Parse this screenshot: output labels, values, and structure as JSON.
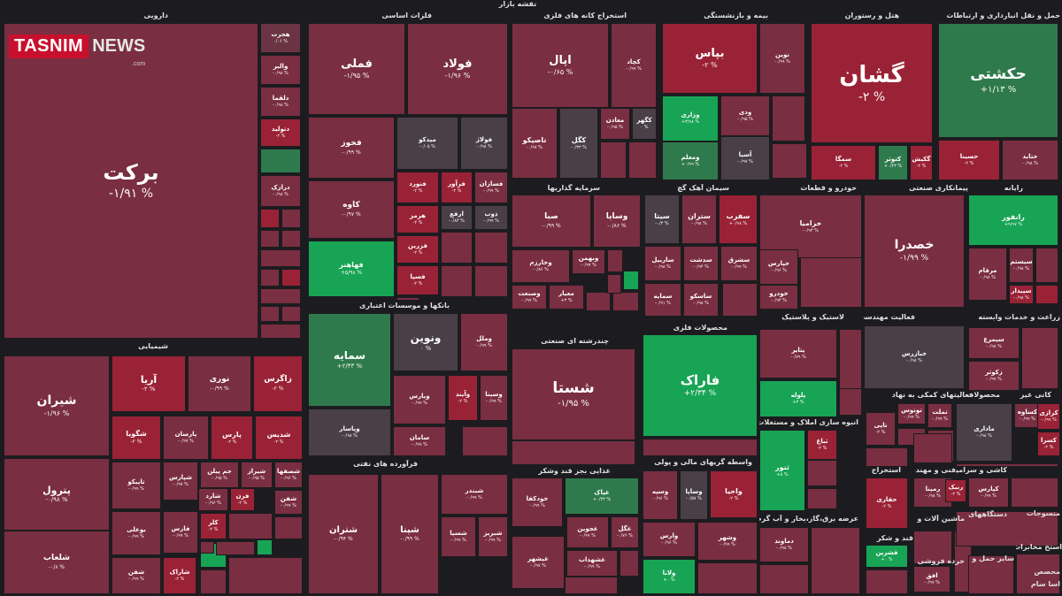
{
  "title": "نقشه بازار",
  "logo": {
    "main": "TASNIM",
    "sub": "NEWS",
    "url": ".com"
  },
  "colors": {
    "bg": "#1c1c20",
    "down": "#7a2e41",
    "down_strong": "#9a2236",
    "down_light": "#6b3444",
    "neutral": "#4a3f47",
    "up": "#18a455",
    "up_light": "#2f7a4c"
  },
  "sectors": [
    {
      "name": "دارویی"
    },
    {
      "name": "فلزات اساسی"
    },
    {
      "name": "استخراج کانه های فلزی"
    },
    {
      "name": "بیمه و بازنشستگی"
    },
    {
      "name": "هتل و رستوران"
    },
    {
      "name": "حمل و نقل انبارداری و ارتباطات"
    },
    {
      "name": "سرمایه گذاریها"
    },
    {
      "name": "سیمان آهک گچ"
    },
    {
      "name": "خودرو و قطعات"
    },
    {
      "name": "پیمانکاری صنعتی"
    },
    {
      "name": "رایانه"
    },
    {
      "name": "شیمیایی"
    },
    {
      "name": "بانکها و موسسات اعتباری"
    },
    {
      "name": "چندرشته ای صنعتی"
    },
    {
      "name": "محصولات فلزی"
    },
    {
      "name": "لاستیک و پلاستیک"
    },
    {
      "name": "فعالیت مهندسی، تجزیه"
    },
    {
      "name": "زراعت و خدمات وابسته"
    },
    {
      "name": "فرآورده های نفتی"
    },
    {
      "name": "غذایی بجز قند وشکر"
    },
    {
      "name": "واسطه گریهای مالی و پولی"
    },
    {
      "name": "انبوه سازی املاک و مستغلات"
    },
    {
      "name": "فعالیتهای کمکی به نهاد"
    },
    {
      "name": "محصولات"
    },
    {
      "name": "کانی غیر"
    },
    {
      "name": "عرضه برق،گاز،بخار و آب گرم"
    },
    {
      "name": "فنی و مهندسی"
    },
    {
      "name": "کاشی و سرامیک"
    },
    {
      "name": "استخراج"
    },
    {
      "name": "دستگاههای"
    },
    {
      "name": "ماشین آلات و"
    },
    {
      "name": "منسوجات"
    },
    {
      "name": "قند و شکر"
    },
    {
      "name": "خرده فروشی"
    },
    {
      "name": "سایر حمل و"
    },
    {
      "name": "استخ مخابرات"
    },
    {
      "name": "محصص"
    },
    {
      "name": "اسا سام"
    }
  ],
  "tiles": [
    {
      "name": "برکت",
      "pct": "-۱/۹۱ %"
    },
    {
      "name": "هجرت",
      "pct": "۰/۰۶ %"
    },
    {
      "name": "والبر",
      "pct": "-۰/۹۸ %"
    },
    {
      "name": "دلقما",
      "pct": "-۰/۹۸ %"
    },
    {
      "name": "دتولید",
      "pct": "-۲ %"
    },
    {
      "name": "",
      "pct": ""
    },
    {
      "name": "درازک",
      "pct": "-۰/۹۸ %"
    },
    {
      "name": "فملی",
      "pct": "-۱/۹۵ %"
    },
    {
      "name": "فولاد",
      "pct": "-۱/۹۶ %"
    },
    {
      "name": "فخوز",
      "pct": "-۰/۹۹ %"
    },
    {
      "name": "میدکو",
      "pct": "-۰/۰۵ %"
    },
    {
      "name": "فولاژ",
      "pct": "-۰/۹۸ %"
    },
    {
      "name": "کاوه",
      "pct": "-۰/۹۷ %"
    },
    {
      "name": "فنورد",
      "pct": "-۲ %"
    },
    {
      "name": "فرآور",
      "pct": "-۲ %"
    },
    {
      "name": "فسازان",
      "pct": "-۰/۹۹ %"
    },
    {
      "name": "هرمز",
      "pct": "-۲ %"
    },
    {
      "name": "ارفع",
      "pct": "-۰/۸۳ %"
    },
    {
      "name": "ذوب",
      "pct": "-۰/۹۹ %"
    },
    {
      "name": "فهاهنر",
      "pct": "+۵/۹۸ %"
    },
    {
      "name": "فزرین",
      "pct": "-۲ %"
    },
    {
      "name": "فسپا",
      "pct": "-۲ %"
    },
    {
      "name": "اپال",
      "pct": "-۰/۶۵ %"
    },
    {
      "name": "کچاد",
      "pct": "-۰/۹۹ %"
    },
    {
      "name": "تاصیکو",
      "pct": "-۰/۹۷ %"
    },
    {
      "name": "کگل",
      "pct": "-۰/۳۳ %"
    },
    {
      "name": "معادن",
      "pct": "-۰/۹۵ %"
    },
    {
      "name": "کگهر",
      "pct": "۰ %"
    },
    {
      "name": "بپاس",
      "pct": "-۲ %"
    },
    {
      "name": "نوین",
      "pct": "-۰/۹۹ %"
    },
    {
      "name": "وزاری",
      "pct": "+۳/۹۸ %"
    },
    {
      "name": "ودی",
      "pct": "-۰/۹۵ %"
    },
    {
      "name": "ومعلم",
      "pct": "+۰/۹۹ %"
    },
    {
      "name": "آسیا",
      "pct": "-۰/۹۷ %"
    },
    {
      "name": "گشان",
      "pct": "-۲ %"
    },
    {
      "name": "سمگا",
      "pct": "-۲ %"
    },
    {
      "name": "کتوثر",
      "pct": "+۰/۴۳ %"
    },
    {
      "name": "گکیش",
      "pct": "-۲ %"
    },
    {
      "name": "حکشتی",
      "pct": "+۱/۱۳ %"
    },
    {
      "name": "حسینا",
      "pct": "-۲ %"
    },
    {
      "name": "حتاید",
      "pct": "-۰/۹۸ %"
    },
    {
      "name": "صبا",
      "pct": "-۰/۹۹ %"
    },
    {
      "name": "وسایا",
      "pct": "-۰/۸۶ %"
    },
    {
      "name": "وبهمن",
      "pct": "-۰/۹۷ %"
    },
    {
      "name": "وخارزم",
      "pct": "-۰/۸۶ %"
    },
    {
      "name": "معیار",
      "pct": "+۳ %"
    },
    {
      "name": "وصنعت",
      "pct": "-۰/۹۷ %"
    },
    {
      "name": "سیتا",
      "pct": "-۰/۳ %"
    },
    {
      "name": "ستران",
      "pct": "-۰/۹۸ %"
    },
    {
      "name": "سفرب",
      "pct": "+۰/۹۸ %"
    },
    {
      "name": "ساربیل",
      "pct": "-۰/۹۸ %"
    },
    {
      "name": "سدشت",
      "pct": "-۰/۹۴ %"
    },
    {
      "name": "سشرق",
      "pct": "-۰/۹۹ %"
    },
    {
      "name": "سمایه",
      "pct": "-۰/۹۱ %"
    },
    {
      "name": "ساسکو",
      "pct": "-۰/۹۸ %"
    },
    {
      "name": "خزامیا",
      "pct": "-۰/۹۳ %"
    },
    {
      "name": "خپارس",
      "pct": "-۰/۹۶ %"
    },
    {
      "name": "خودرو",
      "pct": "-۰/۹۳ %"
    },
    {
      "name": "خصدرا",
      "pct": "-۱/۹۹ %"
    },
    {
      "name": "رانفور",
      "pct": "+۹/۹۷ %"
    },
    {
      "name": "سیستم",
      "pct": "-۰/۹۸ %"
    },
    {
      "name": "مرقام",
      "pct": "-۰/۹۸ %"
    },
    {
      "name": "سپیدار",
      "pct": "-۰/۹۸ %"
    },
    {
      "name": "شیران",
      "pct": "-۱/۹۶ %"
    },
    {
      "name": "آریا",
      "pct": "-۲ %"
    },
    {
      "name": "نوری",
      "pct": "-۰/۹۹ %"
    },
    {
      "name": "زاگرس",
      "pct": "-۲ %"
    },
    {
      "name": "شگویا",
      "pct": "-۲ %"
    },
    {
      "name": "پارسان",
      "pct": "-۰/۹۷ %"
    },
    {
      "name": "پارس",
      "pct": "-۲ %"
    },
    {
      "name": "شدیس",
      "pct": "-۲ %"
    },
    {
      "name": "پترول",
      "pct": "-۰/۹۸ %"
    },
    {
      "name": "تاپیکو",
      "pct": "-۰/۹۹ %"
    },
    {
      "name": "شپارس",
      "pct": "-۰/۹۷ %"
    },
    {
      "name": "جم پیلن",
      "pct": "-۰/۹۵ %"
    },
    {
      "name": "شیراز",
      "pct": "-۰/۹۵ %"
    },
    {
      "name": "شصفها",
      "pct": "-۰/۹۶ %"
    },
    {
      "name": "شفن",
      "pct": "-۰/۹۹ %"
    },
    {
      "name": "بوعلی",
      "pct": "-۰/۹۹ %"
    },
    {
      "name": "شارد",
      "pct": "-۰/۹۶ %"
    },
    {
      "name": "فرن",
      "pct": "-۲ %"
    },
    {
      "name": "فارس",
      "pct": "-۰/۹۹ %"
    },
    {
      "name": "کلر",
      "pct": "-۲ %"
    },
    {
      "name": "شلعاب",
      "pct": "-۰/۸ %"
    },
    {
      "name": "شفن",
      "pct": "-۰/۹۹ %"
    },
    {
      "name": "شاراک",
      "pct": "-۲ %"
    },
    {
      "name": "سمایه",
      "pct": "+۲/۴۳ %"
    },
    {
      "name": "ونوین",
      "pct": "۰ %"
    },
    {
      "name": "وملل",
      "pct": "-۰/۹۹ %"
    },
    {
      "name": "ویارس",
      "pct": "-۰/۹۹ %"
    },
    {
      "name": "وآیند",
      "pct": "-۲ %"
    },
    {
      "name": "وسینا",
      "pct": "-۰/۹۹ %"
    },
    {
      "name": "وپاسار",
      "pct": "-۰/۹۸ %"
    },
    {
      "name": "سامان",
      "pct": "-۰/۹۹ %"
    },
    {
      "name": "شستا",
      "pct": "-۱/۹۵ %"
    },
    {
      "name": "فاراک",
      "pct": "+۲/۳۴ %"
    },
    {
      "name": "پتایر",
      "pct": "-۰/۷۹ %"
    },
    {
      "name": "پلوله",
      "pct": "+۳ %"
    },
    {
      "name": "خبازرس",
      "pct": "-۰/۹۸ %"
    },
    {
      "name": "سیمرغ",
      "pct": "-۰/۹۸ %"
    },
    {
      "name": "زکوثر",
      "pct": "-۰/۹۹ %"
    },
    {
      "name": "شتران",
      "pct": "-۰/۹۴ %"
    },
    {
      "name": "شپنا",
      "pct": "-۰/۹۹ %"
    },
    {
      "name": "شبندر",
      "pct": "-۰/۹۹ %"
    },
    {
      "name": "شسپا",
      "pct": "-۰/۹۹ %"
    },
    {
      "name": "شبریز",
      "pct": "-۰/۹۹ %"
    },
    {
      "name": "خودکفا",
      "pct": "-۰/۹۹ %"
    },
    {
      "name": "غپاک",
      "pct": "+۰/۳۳ %"
    },
    {
      "name": "غگل",
      "pct": "-۰/۷۶ %"
    },
    {
      "name": "غجوین",
      "pct": "-۰/۹۹ %"
    },
    {
      "name": "غشهداب",
      "pct": "-۰/۹۹ %"
    },
    {
      "name": "غیشهر",
      "pct": "-۰/۹۷ %"
    },
    {
      "name": "وسپه",
      "pct": "-۰/۹۶ %"
    },
    {
      "name": "وساپا",
      "pct": "-۰/۵۷ %"
    },
    {
      "name": "واحیا",
      "pct": "-۲ %"
    },
    {
      "name": "وارس",
      "pct": "-۰/۹۶ %"
    },
    {
      "name": "وشهر",
      "pct": "-۰/۹۹ %"
    },
    {
      "name": "ولانا",
      "pct": "+۰ %"
    },
    {
      "name": "ثنور",
      "pct": "+۵ %"
    },
    {
      "name": "ثباغ",
      "pct": "-۲ %"
    },
    {
      "name": "دماوند",
      "pct": "-۰/۹۸ %"
    },
    {
      "name": "تونوس",
      "pct": "-۰/۹۹ %"
    },
    {
      "name": "تملت",
      "pct": "-۰/۹۹ %"
    },
    {
      "name": "تاپی",
      "pct": "-۲ %"
    },
    {
      "name": "ماداری",
      "pct": "-۰/۹۸ %"
    },
    {
      "name": "کساوه",
      "pct": "-۰/۹۹ %"
    },
    {
      "name": "کرازی",
      "pct": "-۰/۹۹ %"
    },
    {
      "name": "کسرا",
      "pct": "-۲ %"
    },
    {
      "name": "حفاری",
      "pct": "-۲ %"
    },
    {
      "name": "رمپنا",
      "pct": "-۰/۹۸ %"
    },
    {
      "name": "رنیک",
      "pct": "-۲ %"
    },
    {
      "name": "کپارس",
      "pct": "-۰/۹۹ %"
    },
    {
      "name": "قشرین",
      "pct": "+۰ %"
    },
    {
      "name": "افق",
      "pct": "-۰/۹۹ %"
    }
  ]
}
